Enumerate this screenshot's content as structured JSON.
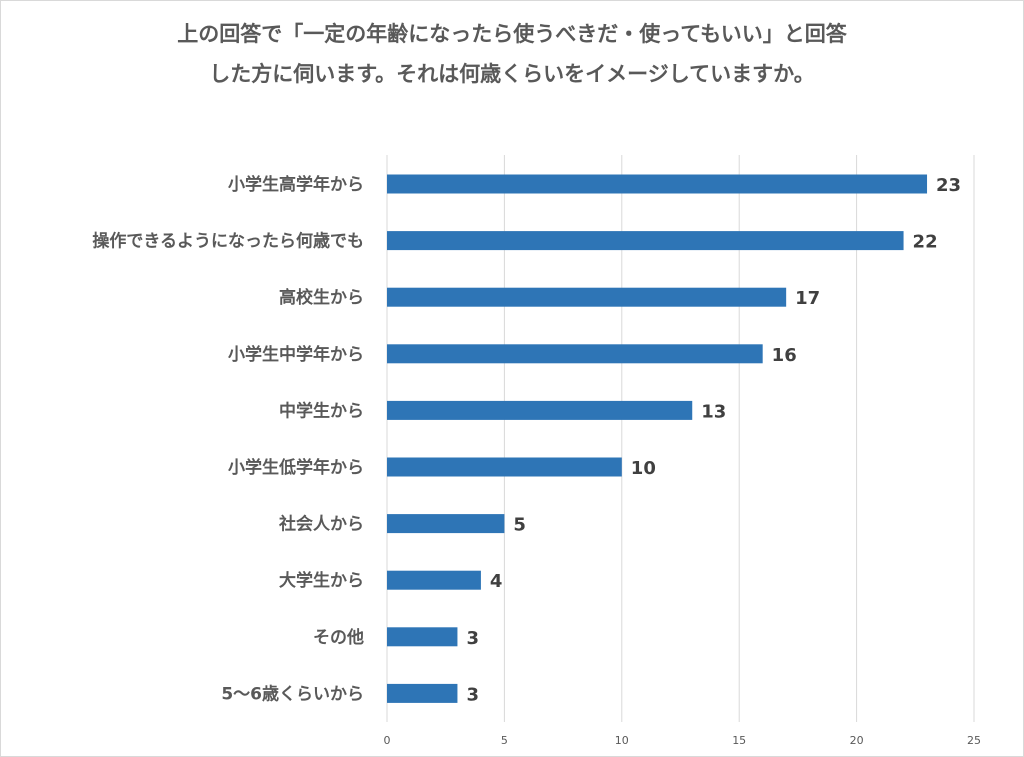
{
  "chart_data": {
    "type": "bar",
    "orientation": "horizontal",
    "title_lines": [
      "上の回答で「一定の年齢になったら使うべきだ・使ってもいい」と回答",
      "した方に伺います。それは何歳くらいをイメージしていますか。"
    ],
    "categories": [
      "小学生高学年から",
      "操作できるようになったら何歳でも",
      "高校生から",
      "小学生中学年から",
      "中学生から",
      "小学生低学年から",
      "社会人から",
      "大学生から",
      "その他",
      "5〜6歳くらいから"
    ],
    "values": [
      23,
      22,
      17,
      16,
      13,
      10,
      5,
      4,
      3,
      3
    ],
    "xlim": [
      0,
      25
    ],
    "xticks": [
      "0",
      "5",
      "10",
      "15",
      "20",
      "25"
    ],
    "grid": "vertical",
    "legend": "none",
    "bar_color": "#2e75b6",
    "data_labels": true
  }
}
